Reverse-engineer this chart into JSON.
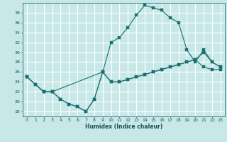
{
  "xlabel": "Humidex (Indice chaleur)",
  "bg_color": "#c8e8e8",
  "line_color": "#1a7070",
  "grid_color": "#ffffff",
  "xlim": [
    -0.5,
    23.5
  ],
  "ylim": [
    17,
    40
  ],
  "xticks": [
    0,
    1,
    2,
    3,
    4,
    5,
    6,
    7,
    8,
    9,
    10,
    11,
    12,
    13,
    14,
    15,
    16,
    17,
    18,
    19,
    20,
    21,
    22,
    23
  ],
  "yticks": [
    18,
    20,
    22,
    24,
    26,
    28,
    30,
    32,
    34,
    36,
    38
  ],
  "line1_x": [
    0,
    1,
    2,
    3,
    4,
    5,
    6,
    7,
    8,
    9,
    10,
    11,
    12,
    13,
    14,
    15,
    16,
    17,
    18,
    19,
    20,
    21,
    22,
    23
  ],
  "line1_y": [
    25,
    23.5,
    22,
    22,
    20.5,
    19.5,
    19,
    18,
    20.5,
    26,
    24,
    24,
    24.5,
    25,
    25.5,
    26,
    26.5,
    27,
    27.5,
    28,
    28.5,
    27,
    26.5,
    26.5
  ],
  "line2_x": [
    0,
    1,
    2,
    3,
    4,
    5,
    6,
    7,
    8,
    9,
    10,
    11,
    12,
    13,
    14,
    15,
    16,
    17,
    18,
    19,
    20,
    21,
    22,
    23
  ],
  "line2_y": [
    25,
    23.5,
    22,
    22,
    20.5,
    19.5,
    19,
    18,
    20.5,
    26,
    32,
    33,
    35,
    37.5,
    39.5,
    39,
    38.5,
    37,
    36,
    30.5,
    28,
    30.5,
    28,
    27
  ],
  "line3_x": [
    0,
    2,
    3,
    9,
    10,
    11,
    12,
    13,
    14,
    15,
    16,
    17,
    18,
    19,
    20,
    21,
    22,
    23
  ],
  "line3_y": [
    25,
    22,
    22,
    26,
    24,
    24,
    24.5,
    25,
    25.5,
    26,
    26.5,
    27,
    27.5,
    28,
    28.5,
    30,
    28,
    27
  ]
}
